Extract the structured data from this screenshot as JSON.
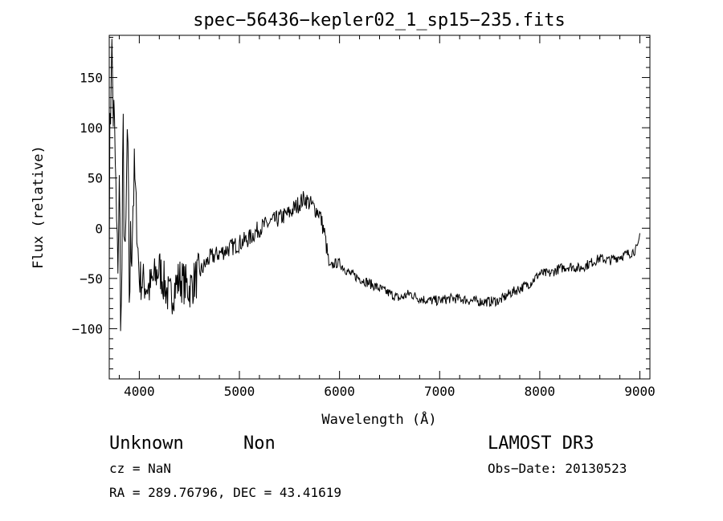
{
  "chart_data": {
    "type": "line",
    "title": "spec−56436−kepler02_1_sp15−235.fits",
    "xlabel": "Wavelength (Å)",
    "ylabel": "Flux (relative)",
    "xlim": [
      3700,
      9100
    ],
    "ylim": [
      -150,
      192
    ],
    "xticks": [
      4000,
      5000,
      6000,
      7000,
      8000,
      9000
    ],
    "xtick_labels": [
      "4000",
      "5000",
      "6000",
      "7000",
      "8000",
      "9000"
    ],
    "yticks": [
      -100,
      -50,
      0,
      50,
      100,
      150
    ],
    "ytick_labels": [
      "−100",
      "−50",
      "0",
      "50",
      "100",
      "150"
    ],
    "series": [
      {
        "name": "spectrum",
        "x": [
          3700,
          3720,
          3740,
          3760,
          3780,
          3800,
          3820,
          3840,
          3860,
          3880,
          3900,
          3950,
          4000,
          4100,
          4200,
          4300,
          4400,
          4500,
          4600,
          4700,
          4800,
          4900,
          5000,
          5100,
          5200,
          5300,
          5400,
          5500,
          5600,
          5650,
          5700,
          5750,
          5800,
          5850,
          5900,
          5950,
          6000,
          6100,
          6200,
          6300,
          6400,
          6500,
          6600,
          6700,
          6800,
          6900,
          7000,
          7100,
          7200,
          7300,
          7400,
          7500,
          7600,
          7700,
          7800,
          7900,
          8000,
          8100,
          8200,
          8300,
          8400,
          8500,
          8600,
          8700,
          8800,
          8900,
          8980,
          9000
        ],
        "y": [
          10,
          185,
          120,
          60,
          -40,
          30,
          -95,
          80,
          -60,
          90,
          -60,
          60,
          -50,
          -60,
          -40,
          -70,
          -50,
          -60,
          -45,
          -30,
          -25,
          -20,
          -15,
          -10,
          0,
          5,
          10,
          15,
          25,
          30,
          25,
          20,
          15,
          -5,
          -40,
          -35,
          -35,
          -45,
          -50,
          -55,
          -60,
          -65,
          -70,
          -65,
          -70,
          -72,
          -72,
          -70,
          -70,
          -72,
          -73,
          -73,
          -72,
          -65,
          -60,
          -55,
          -45,
          -45,
          -40,
          -38,
          -40,
          -35,
          -30,
          -32,
          -28,
          -25,
          -20,
          -5
        ]
      }
    ]
  },
  "info": {
    "object_class": "Unknown",
    "object_subclass": "Non",
    "survey": "LAMOST DR3",
    "cz": "cz = NaN",
    "obs_date": "Obs−Date: 20130523",
    "coords": "RA = 289.76796, DEC =  43.41619"
  }
}
